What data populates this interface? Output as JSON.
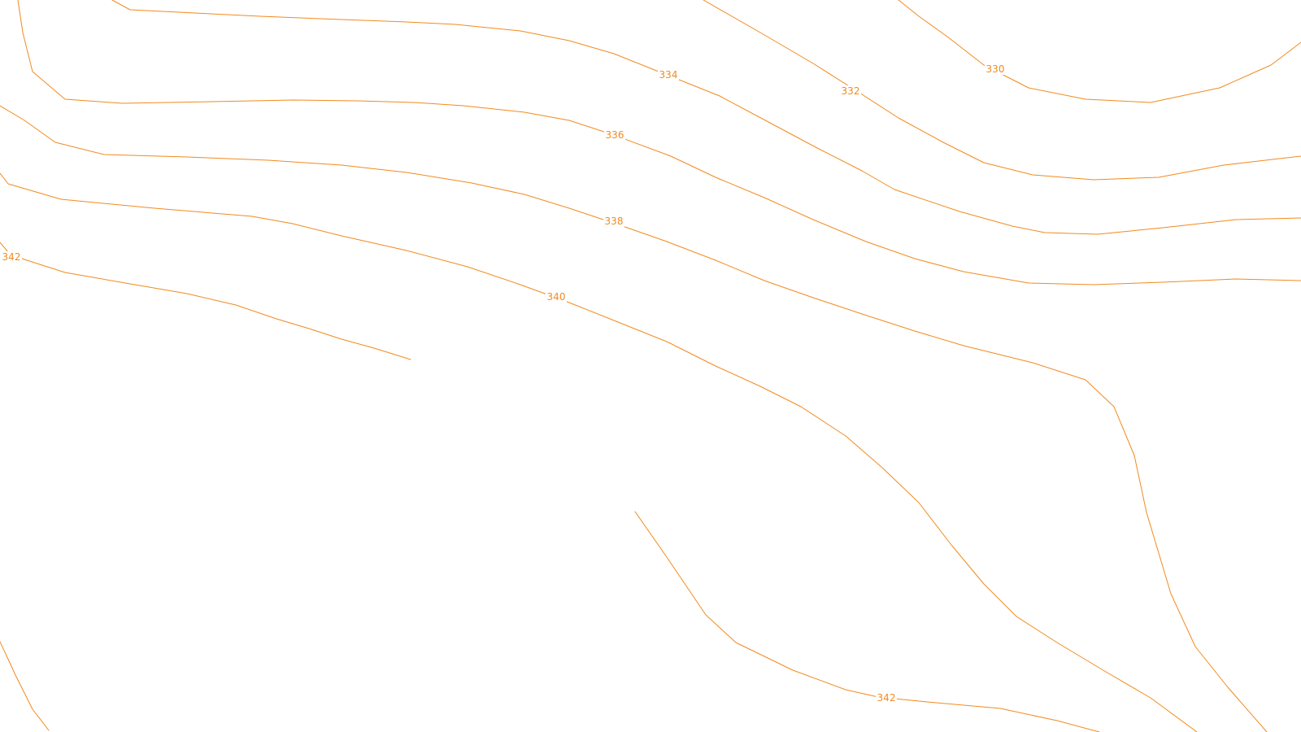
{
  "map": {
    "style": {
      "contour_color": "#f28a1e",
      "background": "#ffffff"
    },
    "contours": [
      {
        "elevation": "330"
      },
      {
        "elevation": "332"
      },
      {
        "elevation": "334"
      },
      {
        "elevation": "336"
      },
      {
        "elevation": "338"
      },
      {
        "elevation": "340"
      },
      {
        "elevation": "342"
      }
    ],
    "labels": [
      {
        "text": "330"
      },
      {
        "text": "332"
      },
      {
        "text": "334"
      },
      {
        "text": "336"
      },
      {
        "text": "338"
      },
      {
        "text": "340"
      },
      {
        "text": "342"
      },
      {
        "text": "342"
      }
    ]
  }
}
